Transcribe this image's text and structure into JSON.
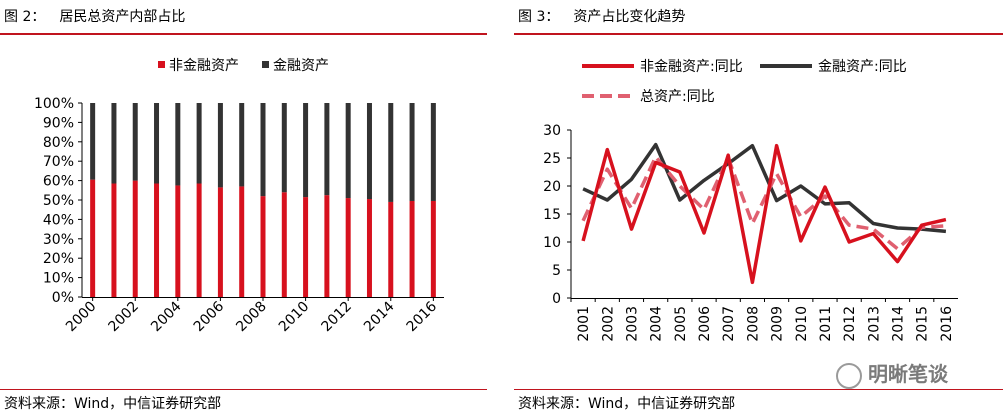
{
  "left": {
    "fig_label": "图 2：",
    "fig_title": "居民总资产内部占比",
    "source": "资料来源：Wind，中信证券研究部"
  },
  "right": {
    "fig_label": "图 3：",
    "fig_title": "资产占比变化趋势",
    "source": "资料来源：Wind，中信证券研究部"
  },
  "watermark": "明晰笔谈",
  "colors": {
    "red": "#d7111e",
    "black": "#333333",
    "pink": "#e06070",
    "rule": "#c0141e"
  },
  "chart_data": [
    {
      "type": "bar",
      "stacked": true,
      "categories": [
        "2000",
        "2001",
        "2002",
        "2003",
        "2004",
        "2005",
        "2006",
        "2007",
        "2008",
        "2009",
        "2010",
        "2011",
        "2012",
        "2013",
        "2014",
        "2015",
        "2016"
      ],
      "x_tick_labels": [
        "2000",
        "2002",
        "2004",
        "2006",
        "2008",
        "2010",
        "2012",
        "2014",
        "2016"
      ],
      "ylim": [
        0,
        100
      ],
      "y_ticks": [
        "0%",
        "10%",
        "20%",
        "30%",
        "40%",
        "50%",
        "60%",
        "70%",
        "80%",
        "90%",
        "100%"
      ],
      "legend_position": "top",
      "series": [
        {
          "name": "非金融资产",
          "color": "#d7111e",
          "values": [
            60.5,
            58.5,
            60,
            58.5,
            57.5,
            58.5,
            56.5,
            57,
            52,
            54,
            51.5,
            52.5,
            51,
            50.5,
            49,
            49.5,
            49.5
          ]
        },
        {
          "name": "金融资产",
          "color": "#333333",
          "values": [
            39.5,
            41.5,
            40,
            41.5,
            42.5,
            41.5,
            43.5,
            43,
            48,
            46,
            48.5,
            47.5,
            49,
            49.5,
            51,
            50.5,
            50.5
          ]
        }
      ]
    },
    {
      "type": "line",
      "x": [
        "2001",
        "2002",
        "2003",
        "2004",
        "2005",
        "2006",
        "2007",
        "2008",
        "2009",
        "2010",
        "2011",
        "2012",
        "2013",
        "2014",
        "2015",
        "2016"
      ],
      "ylim": [
        0,
        30
      ],
      "y_ticks": [
        "0",
        "5",
        "10",
        "15",
        "20",
        "25",
        "30"
      ],
      "legend_position": "top",
      "series": [
        {
          "name": "非金融资产:同比",
          "color": "#d7111e",
          "dash": false,
          "values": [
            10.2,
            26.5,
            12.3,
            24.2,
            22.5,
            11.6,
            25.5,
            2.8,
            27.2,
            10.2,
            19.8,
            10.0,
            11.5,
            6.5,
            13.0,
            14.0
          ]
        },
        {
          "name": "金融资产:同比",
          "color": "#333333",
          "dash": false,
          "values": [
            19.5,
            17.5,
            21.2,
            27.4,
            17.5,
            21.0,
            24.0,
            27.2,
            17.4,
            20.0,
            16.8,
            17.0,
            13.3,
            12.5,
            12.3,
            11.9
          ]
        },
        {
          "name": "总资产:同比",
          "color": "#e06070",
          "dash": true,
          "values": [
            13.8,
            23.0,
            16.0,
            25.2,
            20.0,
            15.8,
            25.0,
            13.3,
            22.2,
            14.5,
            18.2,
            13.0,
            12.3,
            8.8,
            12.6,
            12.9
          ]
        }
      ]
    }
  ]
}
